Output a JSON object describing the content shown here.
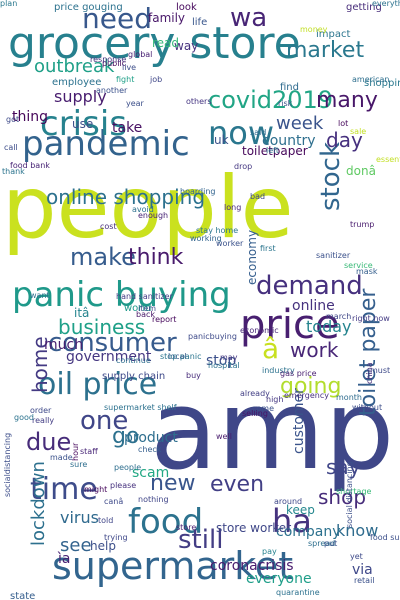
{
  "words": [
    {
      "text": "people",
      "c": "#cae11f"
    },
    {
      "text": "amp",
      "c": "#3f4788"
    },
    {
      "text": "grocery store",
      "c": "#27808e"
    },
    {
      "text": "supermarket",
      "c": "#32658e"
    },
    {
      "text": "price",
      "c": "#481f70"
    },
    {
      "text": "panic buying",
      "c": "#1f998a"
    },
    {
      "text": "pandemic",
      "c": "#33638d"
    },
    {
      "text": "crisis",
      "c": "#26828e"
    },
    {
      "text": "food",
      "c": "#2c728e"
    },
    {
      "text": "now",
      "c": "#2a778e"
    },
    {
      "text": "need",
      "c": "#38588c"
    },
    {
      "text": "wa",
      "c": "#482576"
    },
    {
      "text": "oil price",
      "c": "#2d718e"
    },
    {
      "text": "consumer",
      "c": "#375b8d"
    },
    {
      "text": "time",
      "c": "#3e4c8a"
    },
    {
      "text": "ha",
      "c": "#46337f"
    },
    {
      "text": "â",
      "c": "#c8e020"
    },
    {
      "text": "covid2019",
      "c": "#21a585"
    },
    {
      "text": "one",
      "c": "#404688"
    },
    {
      "text": "demand",
      "c": "#46307e"
    },
    {
      "text": "going",
      "c": "#b2dd2d"
    },
    {
      "text": "stock",
      "c": "#31668e"
    },
    {
      "text": "toilet paper",
      "c": "#355f8d"
    },
    {
      "text": "new",
      "c": "#39558c"
    },
    {
      "text": "even",
      "c": "#423f85"
    },
    {
      "text": "market",
      "c": "#2a788e"
    },
    {
      "text": "many",
      "c": "#481769"
    },
    {
      "text": "make",
      "c": "#365c8d"
    },
    {
      "text": "think",
      "c": "#481a6c"
    },
    {
      "text": "day",
      "c": "#46307e"
    },
    {
      "text": "work",
      "c": "#482677"
    },
    {
      "text": "due",
      "c": "#472c7a"
    },
    {
      "text": "shop",
      "c": "#472c7a"
    },
    {
      "text": "say",
      "c": "#404688"
    },
    {
      "text": "lockdown",
      "c": "#2d708e"
    },
    {
      "text": "still",
      "c": "#433d84"
    },
    {
      "text": "online shopping",
      "c": "#2c718e"
    },
    {
      "text": "business",
      "c": "#1fa088"
    },
    {
      "text": "go",
      "c": "#2d718e"
    },
    {
      "text": "week",
      "c": "#3a548c"
    },
    {
      "text": "home",
      "c": "#443a83"
    },
    {
      "text": "today",
      "c": "#25848e"
    },
    {
      "text": "government",
      "c": "#453781"
    },
    {
      "text": "stop",
      "c": "#3c508b"
    },
    {
      "text": "online",
      "c": "#46327e"
    },
    {
      "text": "see",
      "c": "#33638d"
    },
    {
      "text": "know",
      "c": "#2f6c8e"
    },
    {
      "text": "virus",
      "c": "#306a8e"
    },
    {
      "text": "customer",
      "c": "#3a538b"
    },
    {
      "text": "company",
      "c": "#2c718e"
    },
    {
      "text": "keep",
      "c": "#24878e"
    },
    {
      "text": "outbreak",
      "c": "#1fa088"
    },
    {
      "text": "supply",
      "c": "#481d6f"
    },
    {
      "text": "thing",
      "c": "#46075a"
    },
    {
      "text": "use",
      "c": "#3d4e8a"
    },
    {
      "text": "take",
      "c": "#471063"
    },
    {
      "text": "much",
      "c": "#481f70"
    },
    {
      "text": "scam",
      "c": "#22a884"
    },
    {
      "text": "product",
      "c": "#2e6e8e"
    },
    {
      "text": "via",
      "c": "#3f4889"
    },
    {
      "text": "ìa",
      "c": "#482173"
    },
    {
      "text": "help",
      "c": "#3c4f8a"
    },
    {
      "text": "coronacrisis",
      "c": "#481b6d"
    },
    {
      "text": "everyone",
      "c": "#1f9e89"
    },
    {
      "text": "economy",
      "c": "#355e8d"
    },
    {
      "text": "itâ",
      "c": "#25848e"
    },
    {
      "text": "uk",
      "c": "#3b528b"
    },
    {
      "text": "country",
      "c": "#2e6f8e"
    },
    {
      "text": "toiletpaper",
      "c": "#46075a"
    },
    {
      "text": "donâ",
      "c": "#5ec962"
    },
    {
      "text": "family",
      "c": "#481769"
    },
    {
      "text": "way",
      "c": "#46327e"
    },
    {
      "text": "read",
      "c": "#35b779"
    },
    {
      "text": "find",
      "c": "#2f6b8e"
    },
    {
      "text": "price gouging",
      "c": "#2c728e"
    },
    {
      "text": "look",
      "c": "#46085c"
    },
    {
      "text": "life",
      "c": "#39568c"
    },
    {
      "text": "impact",
      "c": "#2b758e"
    },
    {
      "text": "getting",
      "c": "#472c7a"
    },
    {
      "text": "shopping",
      "c": "#2a788e"
    },
    {
      "text": "money",
      "c": "#c2df23"
    },
    {
      "text": "employee",
      "c": "#2c728e"
    },
    {
      "text": "got",
      "c": "#3e4a89"
    },
    {
      "text": "call",
      "c": "#3d4d8a"
    },
    {
      "text": "thank",
      "c": "#2b748e"
    },
    {
      "text": "food bank",
      "c": "#482475"
    },
    {
      "text": "supply chain",
      "c": "#3e4989"
    },
    {
      "text": "supermarket shelf",
      "c": "#2c718e"
    },
    {
      "text": "hand sanitizer",
      "c": "#443b84"
    },
    {
      "text": "sanitizer",
      "c": "#3b518b"
    },
    {
      "text": "want",
      "c": "#2d708e"
    },
    {
      "text": "world",
      "c": "#1f998a"
    },
    {
      "text": "store worker",
      "c": "#3f4788"
    },
    {
      "text": "store",
      "c": "#481d6f"
    },
    {
      "text": "spread",
      "c": "#2e6f8e"
    },
    {
      "text": "pay",
      "c": "#26828e"
    },
    {
      "text": "quarantine",
      "c": "#2c718e"
    },
    {
      "text": "retail",
      "c": "#3b518b"
    },
    {
      "text": "yet",
      "c": "#3e4a89"
    },
    {
      "text": "food supply",
      "c": "#3c4f8a"
    },
    {
      "text": "state",
      "c": "#355e8d"
    },
    {
      "text": "around",
      "c": "#3f4889"
    },
    {
      "text": "shortage",
      "c": "#38b977"
    },
    {
      "text": "social distancing",
      "c": "#3c4f8a"
    },
    {
      "text": "american",
      "c": "#2e6f8e"
    },
    {
      "text": "essential",
      "c": "#c2df23"
    },
    {
      "text": "trump",
      "c": "#481b6d"
    },
    {
      "text": "worker",
      "c": "#3b528b"
    },
    {
      "text": "first",
      "c": "#2b758e"
    },
    {
      "text": "service",
      "c": "#38b977"
    },
    {
      "text": "mask",
      "c": "#355f8d"
    },
    {
      "text": "right now",
      "c": "#443b84"
    },
    {
      "text": "must",
      "c": "#3e4a89"
    },
    {
      "text": "china",
      "c": "#472c7a"
    },
    {
      "text": "industry",
      "c": "#2c728e"
    },
    {
      "text": "gas price",
      "c": "#481f70"
    },
    {
      "text": "high",
      "c": "#453882"
    },
    {
      "text": "month",
      "c": "#2f6c8e"
    },
    {
      "text": "check",
      "c": "#355e8d"
    },
    {
      "text": "hour",
      "c": "#46085c"
    },
    {
      "text": "staff",
      "c": "#482677"
    },
    {
      "text": "really",
      "c": "#433d84"
    },
    {
      "text": "good",
      "c": "#2c738e"
    },
    {
      "text": "order",
      "c": "#3e4989"
    },
    {
      "text": "socialdistancing",
      "c": "#3d4e8a"
    },
    {
      "text": "local",
      "c": "#39568c"
    },
    {
      "text": "continue",
      "c": "#2e6e8e"
    },
    {
      "text": "back",
      "c": "#481769"
    },
    {
      "text": "item",
      "c": "#3d4d8a"
    },
    {
      "text": "report",
      "c": "#46085c"
    },
    {
      "text": "stop panic",
      "c": "#2b758e"
    },
    {
      "text": "panicbuying",
      "c": "#3e4a89"
    },
    {
      "text": "economic",
      "c": "#482878"
    },
    {
      "text": "may",
      "c": "#453882"
    },
    {
      "text": "buy",
      "c": "#472c7a"
    },
    {
      "text": "hospital",
      "c": "#2c728e"
    },
    {
      "text": "march",
      "c": "#3f4788"
    },
    {
      "text": "already",
      "c": "#423f85"
    },
    {
      "text": "emergency",
      "c": "#46307e"
    },
    {
      "text": "selling",
      "c": "#481467"
    },
    {
      "text": "people",
      "c": "#2e6e8e"
    },
    {
      "text": "please",
      "c": "#46327e"
    },
    {
      "text": "told",
      "c": "#404688"
    },
    {
      "text": "put",
      "c": "#3b528b"
    },
    {
      "text": "cost",
      "c": "#472e7c"
    },
    {
      "text": "enough",
      "c": "#482475"
    },
    {
      "text": "stay home",
      "c": "#2a768e"
    },
    {
      "text": "working",
      "c": "#32648e"
    },
    {
      "text": "avoid",
      "c": "#2d718e"
    },
    {
      "text": "long",
      "c": "#482878"
    },
    {
      "text": "left",
      "c": "#2d708e"
    },
    {
      "text": "public",
      "c": "#46085c"
    },
    {
      "text": "another",
      "c": "#3b518b"
    },
    {
      "text": "fight",
      "c": "#1fa088"
    },
    {
      "text": "job",
      "c": "#3f4788"
    },
    {
      "text": "live",
      "c": "#3d4e8a"
    },
    {
      "text": "global",
      "c": "#482173"
    },
    {
      "text": "others",
      "c": "#453581"
    },
    {
      "text": "said",
      "c": "#2f6b8e"
    },
    {
      "text": "risk",
      "c": "#3b528b"
    },
    {
      "text": "year",
      "c": "#3c4f8a"
    },
    {
      "text": "response",
      "c": "#46327e"
    },
    {
      "text": "lot",
      "c": "#46085c"
    },
    {
      "text": "drop",
      "c": "#453882"
    },
    {
      "text": "sale",
      "c": "#c2df23"
    },
    {
      "text": "everything",
      "c": "#2c728e"
    },
    {
      "text": "bad",
      "c": "#3e4989"
    },
    {
      "text": "hoarding",
      "c": "#32648e"
    },
    {
      "text": "made",
      "c": "#3b528b"
    },
    {
      "text": "sure",
      "c": "#2e6e8e"
    },
    {
      "text": "might",
      "c": "#46085c"
    },
    {
      "text": "canâ",
      "c": "#3e4a89"
    },
    {
      "text": "nothing",
      "c": "#404688"
    },
    {
      "text": "well",
      "c": "#481b6d"
    },
    {
      "text": "come",
      "c": "#3c508b"
    },
    {
      "text": "without",
      "c": "#3d4e8a"
    },
    {
      "text": "trying",
      "c": "#3f4889"
    },
    {
      "text": "plan",
      "c": "#2a788e"
    }
  ]
}
